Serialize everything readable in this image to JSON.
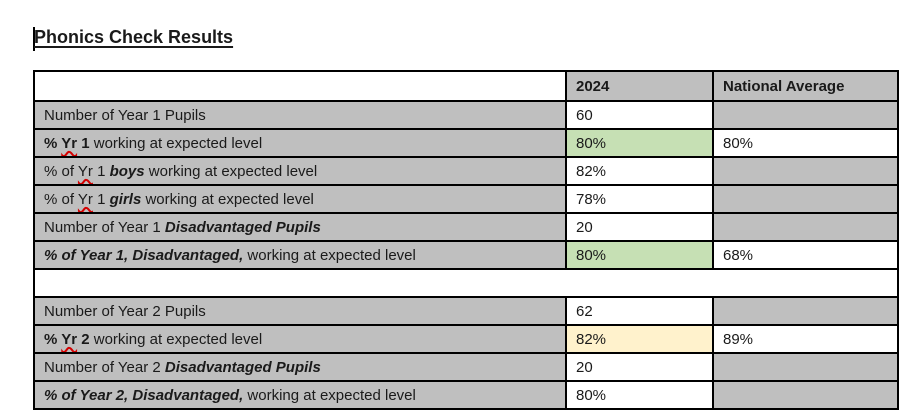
{
  "title": "Phonics Check Results",
  "colors": {
    "cell_gray": "#bfbfbf",
    "highlight_green": "#c6e0b4",
    "highlight_yellow": "#fff2cc",
    "border_black": "#000000",
    "squiggle_red": "#d40000",
    "text": "#1a1a1a"
  },
  "table": {
    "header": {
      "col_label": "",
      "col_2024": "2024",
      "col_national": "National Average"
    },
    "rows": [
      {
        "type": "data",
        "label_segments": [
          {
            "text": "Number of Year 1 Pupils",
            "style": "regular"
          }
        ],
        "value": "60",
        "value_bg": "white",
        "national": "",
        "national_bg": "gray"
      },
      {
        "type": "data",
        "label_segments": [
          {
            "text": "% ",
            "style": "bold"
          },
          {
            "text": "Yr",
            "style": "bold-squiggle"
          },
          {
            "text": " 1",
            "style": "bold"
          },
          {
            "text": " working at expected level",
            "style": "regular"
          }
        ],
        "value": "80%",
        "value_bg": "green",
        "national": "80%",
        "national_bg": "white"
      },
      {
        "type": "data",
        "label_segments": [
          {
            "text": "% of ",
            "style": "regular"
          },
          {
            "text": "Yr",
            "style": "squiggle"
          },
          {
            "text": " 1 ",
            "style": "regular"
          },
          {
            "text": "boys",
            "style": "bold-italic"
          },
          {
            "text": " working at expected level",
            "style": "regular"
          }
        ],
        "value": "82%",
        "value_bg": "white",
        "national": "",
        "national_bg": "gray"
      },
      {
        "type": "data",
        "label_segments": [
          {
            "text": "% of ",
            "style": "regular"
          },
          {
            "text": "Yr",
            "style": "squiggle"
          },
          {
            "text": " 1 ",
            "style": "regular"
          },
          {
            "text": "girls",
            "style": "bold-italic"
          },
          {
            "text": " working at expected level",
            "style": "regular"
          }
        ],
        "value": "78%",
        "value_bg": "white",
        "national": "",
        "national_bg": "gray"
      },
      {
        "type": "data",
        "label_segments": [
          {
            "text": "Number of Year 1 ",
            "style": "regular"
          },
          {
            "text": "Disadvantaged Pupils",
            "style": "bold-italic"
          }
        ],
        "value": "20",
        "value_bg": "white",
        "national": "",
        "national_bg": "gray"
      },
      {
        "type": "data",
        "label_segments": [
          {
            "text": "% of Year 1, Disadvantaged,",
            "style": "bold-italic"
          },
          {
            "text": " working at expected level",
            "style": "regular"
          }
        ],
        "value": "80%",
        "value_bg": "green",
        "national": "68%",
        "national_bg": "white"
      },
      {
        "type": "spacer"
      },
      {
        "type": "data",
        "label_segments": [
          {
            "text": "Number of Year 2 Pupils",
            "style": "regular"
          }
        ],
        "value": "62",
        "value_bg": "white",
        "national": "",
        "national_bg": "gray"
      },
      {
        "type": "data",
        "label_segments": [
          {
            "text": "% ",
            "style": "bold"
          },
          {
            "text": "Yr",
            "style": "bold-squiggle"
          },
          {
            "text": " 2",
            "style": "bold"
          },
          {
            "text": " working at expected level",
            "style": "regular"
          }
        ],
        "value": "82%",
        "value_bg": "yellow",
        "national": "89%",
        "national_bg": "white"
      },
      {
        "type": "data",
        "label_segments": [
          {
            "text": "Number of Year 2 ",
            "style": "regular"
          },
          {
            "text": "Disadvantaged Pupils",
            "style": "bold-italic"
          }
        ],
        "value": "20",
        "value_bg": "white",
        "national": "",
        "national_bg": "gray"
      },
      {
        "type": "data",
        "label_segments": [
          {
            "text": "% of Year 2, Disadvantaged,",
            "style": "bold-italic"
          },
          {
            "text": " working at expected level",
            "style": "regular"
          }
        ],
        "value": "80%",
        "value_bg": "white",
        "national": "",
        "national_bg": "gray"
      }
    ]
  }
}
